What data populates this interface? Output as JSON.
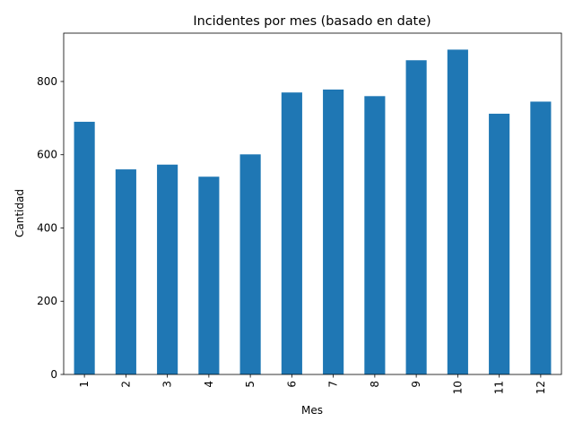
{
  "chart_data": {
    "type": "bar",
    "title": "Incidentes por mes (basado en date)",
    "xlabel": "Mes",
    "ylabel": "Cantidad",
    "categories": [
      "1",
      "2",
      "3",
      "4",
      "5",
      "6",
      "7",
      "8",
      "9",
      "10",
      "11",
      "12"
    ],
    "values": [
      690,
      560,
      573,
      540,
      601,
      770,
      778,
      760,
      858,
      887,
      712,
      745
    ],
    "ylim": [
      0,
      932
    ],
    "yticks": [
      0,
      200,
      400,
      600,
      800
    ],
    "grid": false,
    "bar_color": "#1f77b4"
  }
}
